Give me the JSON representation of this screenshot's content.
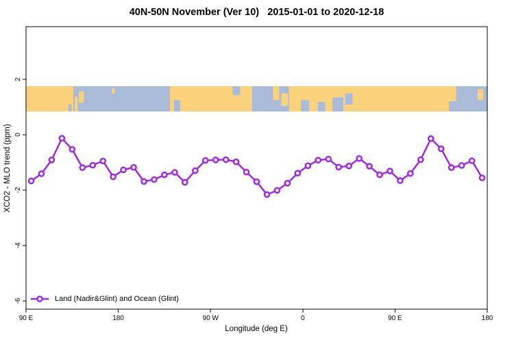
{
  "title": "40N-50N November (Ver 10)   2015-01-01 to 2020-12-18",
  "legend": {
    "label": "Land (Nadir&Glint) and Ocean (Glint)"
  },
  "chart_data": {
    "type": "line",
    "title": "40N-50N November (Ver 10)   2015-01-01 to 2020-12-18",
    "xlabel": "Longitude (deg E)",
    "ylabel": "XCO2 - MLO trend (ppm)",
    "xlim": [
      90,
      540
    ],
    "ylim": [
      -6.3,
      3.9
    ],
    "grid": false,
    "legend_position": "bottom-left-inside",
    "x_ticks": [
      {
        "lon": 90,
        "label": "90 E"
      },
      {
        "lon": 180,
        "label": "180"
      },
      {
        "lon": 270,
        "label": "90 W"
      },
      {
        "lon": 360,
        "label": "0"
      },
      {
        "lon": 450,
        "label": "90 E"
      },
      {
        "lon": 540,
        "label": "180"
      }
    ],
    "y_ticks": [
      {
        "value": 2,
        "label": "2"
      },
      {
        "value": 0,
        "label": "0"
      },
      {
        "value": -2,
        "label": "-2"
      },
      {
        "value": -4,
        "label": "-4"
      },
      {
        "value": -6,
        "label": "-6"
      }
    ],
    "series": [
      {
        "name": "Land (Nadir&Glint) and Ocean (Glint)",
        "color": "#A020F0",
        "marker": "open-circle",
        "x": [
          95,
          105,
          115,
          125,
          135,
          145,
          155,
          165,
          175,
          185,
          195,
          205,
          215,
          225,
          235,
          245,
          255,
          265,
          275,
          285,
          295,
          305,
          315,
          325,
          335,
          345,
          355,
          365,
          375,
          385,
          395,
          405,
          415,
          425,
          435,
          445,
          455,
          465,
          475,
          485,
          495,
          505,
          515,
          525,
          535
        ],
        "y": [
          -1.67,
          -1.41,
          -0.91,
          -0.13,
          -0.53,
          -1.19,
          -1.1,
          -0.95,
          -1.52,
          -1.27,
          -1.18,
          -1.69,
          -1.62,
          -1.45,
          -1.36,
          -1.72,
          -1.3,
          -0.93,
          -0.91,
          -0.9,
          -0.98,
          -1.35,
          -1.7,
          -2.16,
          -2.01,
          -1.75,
          -1.39,
          -1.12,
          -0.92,
          -0.88,
          -1.17,
          -1.13,
          -0.86,
          -1.14,
          -1.45,
          -1.31,
          -1.66,
          -1.4,
          -0.9,
          -0.14,
          -0.51,
          -1.19,
          -1.11,
          -0.94,
          -1.56
        ]
      }
    ],
    "map_band": {
      "description": "land-ocean strip for 40N-50N latitude band",
      "land_color": "#FAD27C",
      "ocean_color": "#A9BBD9",
      "y_range": [
        0.84,
        1.75
      ],
      "segments": [
        {
          "from": 90,
          "to": 136,
          "type": "land"
        },
        {
          "from": 136,
          "to": 230.5,
          "type": "ocean"
        },
        {
          "from": 230.5,
          "to": 310.5,
          "type": "land"
        },
        {
          "from": 310.5,
          "to": 346.5,
          "type": "ocean"
        },
        {
          "from": 346.5,
          "to": 502.5,
          "type": "land"
        },
        {
          "from": 502.5,
          "to": 540,
          "type": "ocean"
        }
      ],
      "patches": [
        {
          "from": 131.5,
          "to": 134.5,
          "type": "ocean",
          "top": 0.72,
          "h": 0.28
        },
        {
          "from": 137.5,
          "to": 140.5,
          "type": "land",
          "top": 0.42,
          "h": 0.58
        },
        {
          "from": 141.5,
          "to": 146.5,
          "type": "land",
          "top": 0.2,
          "h": 0.45
        },
        {
          "from": 174,
          "to": 176.5,
          "type": "land",
          "top": 0.08,
          "h": 0.22
        },
        {
          "from": 234.5,
          "to": 240.5,
          "type": "ocean",
          "top": 0.55,
          "h": 0.45
        },
        {
          "from": 291.5,
          "to": 299,
          "type": "ocean",
          "top": 0.0,
          "h": 0.35
        },
        {
          "from": 331,
          "to": 337,
          "type": "land",
          "top": 0.0,
          "h": 0.55
        },
        {
          "from": 339,
          "to": 345.5,
          "type": "land",
          "top": 0.28,
          "h": 0.5
        },
        {
          "from": 358,
          "to": 366,
          "type": "ocean",
          "top": 0.55,
          "h": 0.45
        },
        {
          "from": 375,
          "to": 382,
          "type": "ocean",
          "top": 0.62,
          "h": 0.38
        },
        {
          "from": 389,
          "to": 399.5,
          "type": "ocean",
          "top": 0.45,
          "h": 0.55
        },
        {
          "from": 401.5,
          "to": 408.5,
          "type": "ocean",
          "top": 0.28,
          "h": 0.45
        },
        {
          "from": 502.5,
          "to": 509.5,
          "type": "land",
          "top": 0.0,
          "h": 0.6
        },
        {
          "from": 530.5,
          "to": 536,
          "type": "land",
          "top": 0.12,
          "h": 0.42
        }
      ]
    }
  }
}
